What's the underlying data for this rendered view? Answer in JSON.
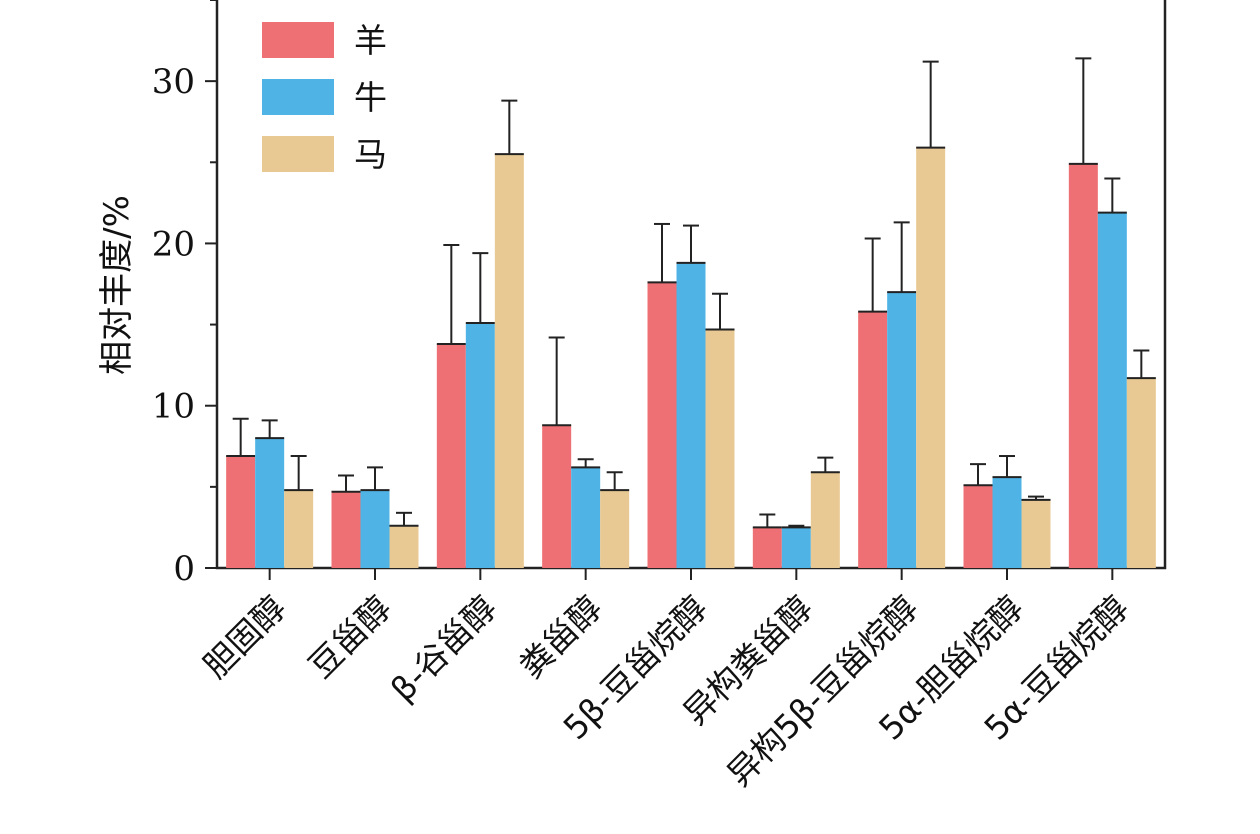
{
  "chart_data": {
    "type": "bar",
    "title": "",
    "xlabel": "",
    "ylabel": "相对丰度/%",
    "ylim": [
      0,
      35
    ],
    "yticks": [
      0,
      10,
      20,
      30
    ],
    "grid": false,
    "legend_position": "top-left",
    "categories": [
      "胆固醇",
      "豆甾醇",
      "β-谷甾醇",
      "粪甾醇",
      "5β-豆甾烷醇",
      "异构粪甾醇",
      "异构5β-豆甾烷醇",
      "5α-胆甾烷醇",
      "5α-豆甾烷醇"
    ],
    "series": [
      {
        "name": "羊",
        "color": "#EE7074",
        "values": [
          6.9,
          4.7,
          13.8,
          8.8,
          17.6,
          2.5,
          15.8,
          5.1,
          24.9
        ],
        "errors": [
          2.3,
          1.0,
          6.1,
          5.4,
          3.6,
          0.8,
          4.5,
          1.3,
          6.5
        ]
      },
      {
        "name": "牛",
        "color": "#4FB3E6",
        "values": [
          8.0,
          4.8,
          15.1,
          6.2,
          18.8,
          2.5,
          17.0,
          5.6,
          21.9
        ],
        "errors": [
          1.1,
          1.4,
          4.3,
          0.5,
          2.3,
          0.1,
          4.3,
          1.3,
          2.1
        ]
      },
      {
        "name": "马",
        "color": "#E8C993",
        "values": [
          4.8,
          2.6,
          25.5,
          4.8,
          14.7,
          5.9,
          25.9,
          4.2,
          11.7
        ],
        "errors": [
          2.1,
          0.8,
          3.3,
          1.1,
          2.2,
          0.9,
          5.3,
          0.2,
          1.7
        ]
      }
    ]
  }
}
